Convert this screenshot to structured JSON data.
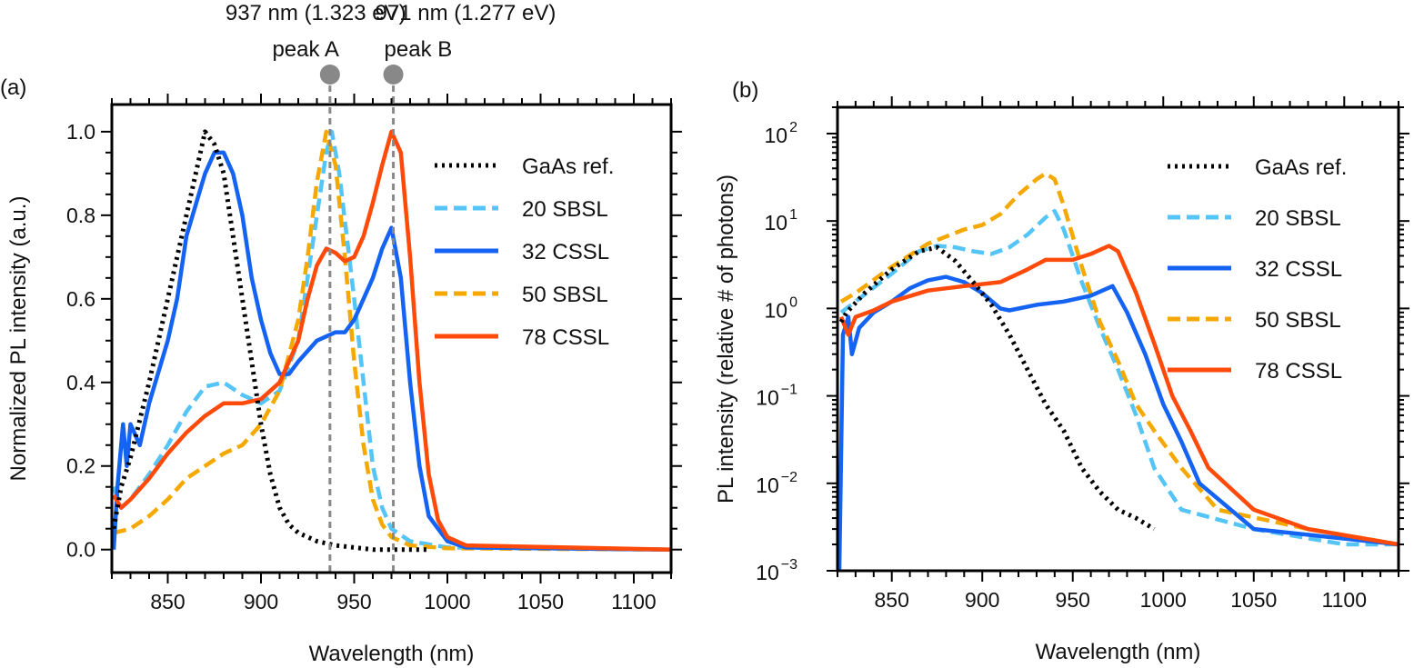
{
  "chart_data": [
    {
      "panel_label": "(a)",
      "type": "line",
      "xlabel": "Wavelength (nm)",
      "ylabel": "Normalized PL intensity (a.u.)",
      "xlim": [
        820,
        1120
      ],
      "ylim": [
        -0.055,
        1.065
      ],
      "yscale": "linear",
      "xticks": [
        850,
        900,
        950,
        1000,
        1050,
        1100
      ],
      "yticks": [
        0.0,
        0.2,
        0.4,
        0.6,
        0.8,
        1.0
      ],
      "ytick_labels": [
        "0.0",
        "0.2",
        "0.4",
        "0.6",
        "0.8",
        "1.0"
      ],
      "grid": false,
      "legend_placement": "top-right",
      "annotations": [
        {
          "x": 937,
          "label": "peak A",
          "value_label": "937 nm (1.323 eV)"
        },
        {
          "x": 971,
          "label": "peak B",
          "value_label": "971 nm (1.277 eV)"
        }
      ],
      "series": [
        {
          "name": "GaAs ref.",
          "color": "#000000",
          "style": "dotted",
          "x": [
            821,
            825,
            830,
            840,
            850,
            860,
            865,
            870,
            875,
            880,
            885,
            890,
            895,
            900,
            905,
            910,
            915,
            920,
            930,
            940,
            950,
            960,
            990
          ],
          "y": [
            0.05,
            0.15,
            0.22,
            0.4,
            0.6,
            0.8,
            0.9,
            1.0,
            0.97,
            0.9,
            0.75,
            0.6,
            0.45,
            0.3,
            0.18,
            0.1,
            0.06,
            0.04,
            0.02,
            0.01,
            0.005,
            0.0,
            0.0
          ]
        },
        {
          "name": "20 SBSL",
          "color": "#55C4F6",
          "style": "dashed",
          "x": [
            821,
            825,
            830,
            840,
            850,
            860,
            870,
            880,
            890,
            900,
            910,
            920,
            930,
            935,
            938,
            942,
            950,
            955,
            960,
            965,
            970,
            980,
            1000,
            1120
          ],
          "y": [
            0.15,
            0.1,
            0.12,
            0.18,
            0.25,
            0.33,
            0.39,
            0.4,
            0.37,
            0.35,
            0.38,
            0.5,
            0.8,
            0.95,
            1.0,
            0.9,
            0.6,
            0.4,
            0.2,
            0.1,
            0.05,
            0.02,
            0.005,
            0.0
          ]
        },
        {
          "name": "32 CSSL",
          "color": "#1463F3",
          "style": "solid",
          "x": [
            821,
            823,
            826,
            828,
            830,
            835,
            840,
            850,
            855,
            860,
            870,
            875,
            880,
            885,
            890,
            895,
            900,
            905,
            910,
            915,
            920,
            930,
            940,
            945,
            950,
            955,
            960,
            965,
            970,
            975,
            980,
            985,
            990,
            1000,
            1010,
            1120
          ],
          "y": [
            0.0,
            0.15,
            0.3,
            0.2,
            0.3,
            0.25,
            0.35,
            0.5,
            0.6,
            0.75,
            0.9,
            0.95,
            0.95,
            0.9,
            0.8,
            0.65,
            0.55,
            0.47,
            0.42,
            0.42,
            0.45,
            0.5,
            0.52,
            0.52,
            0.55,
            0.6,
            0.65,
            0.72,
            0.77,
            0.65,
            0.4,
            0.2,
            0.08,
            0.02,
            0.005,
            0.0
          ]
        },
        {
          "name": "50 SBSL",
          "color": "#F5A900",
          "style": "dashed",
          "x": [
            821,
            830,
            840,
            850,
            860,
            870,
            880,
            890,
            900,
            910,
            920,
            925,
            930,
            935,
            940,
            945,
            950,
            955,
            960,
            965,
            970,
            980,
            1000,
            1120
          ],
          "y": [
            0.04,
            0.05,
            0.08,
            0.12,
            0.17,
            0.2,
            0.23,
            0.25,
            0.3,
            0.38,
            0.55,
            0.7,
            0.88,
            1.0,
            0.92,
            0.7,
            0.45,
            0.25,
            0.12,
            0.06,
            0.03,
            0.01,
            0.003,
            0.0
          ]
        },
        {
          "name": "78 CSSL",
          "color": "#FF4A0A",
          "style": "solid",
          "x": [
            821,
            825,
            830,
            840,
            850,
            860,
            870,
            880,
            890,
            900,
            910,
            920,
            925,
            930,
            935,
            940,
            945,
            950,
            955,
            960,
            965,
            970,
            975,
            980,
            985,
            990,
            995,
            1000,
            1010,
            1120
          ],
          "y": [
            0.13,
            0.1,
            0.12,
            0.17,
            0.23,
            0.28,
            0.32,
            0.35,
            0.35,
            0.36,
            0.4,
            0.5,
            0.6,
            0.68,
            0.72,
            0.71,
            0.69,
            0.7,
            0.75,
            0.83,
            0.92,
            1.0,
            0.95,
            0.7,
            0.4,
            0.18,
            0.07,
            0.03,
            0.01,
            0.0
          ]
        }
      ]
    },
    {
      "panel_label": "(b)",
      "type": "line",
      "xlabel": "Wavelength (nm)",
      "ylabel": "PL intensity (relative # of photons)",
      "xlim": [
        820,
        1130
      ],
      "ylim": [
        0.001,
        200
      ],
      "yscale": "log",
      "xticks": [
        850,
        900,
        950,
        1000,
        1050,
        1100
      ],
      "yticks_exponents": [
        -3,
        -2,
        -1,
        0,
        1,
        2
      ],
      "grid": false,
      "legend_placement": "top-right",
      "series": [
        {
          "name": "GaAs ref.",
          "color": "#000000",
          "style": "dotted",
          "x": [
            822,
            825,
            835,
            850,
            865,
            875,
            885,
            895,
            905,
            915,
            925,
            935,
            945,
            955,
            965,
            975,
            985,
            995
          ],
          "y": [
            0.7,
            0.9,
            1.5,
            2.8,
            4.5,
            5.0,
            3.5,
            2.0,
            1.1,
            0.5,
            0.2,
            0.08,
            0.04,
            0.015,
            0.008,
            0.005,
            0.004,
            0.003
          ]
        },
        {
          "name": "20 SBSL",
          "color": "#55C4F6",
          "style": "dashed",
          "x": [
            822,
            830,
            850,
            865,
            875,
            885,
            895,
            905,
            915,
            925,
            935,
            940,
            945,
            955,
            965,
            975,
            985,
            995,
            1010,
            1050,
            1100,
            1130
          ],
          "y": [
            0.9,
            1.2,
            2.5,
            4.5,
            5.2,
            5.0,
            4.5,
            4.2,
            5.0,
            7.0,
            11,
            13,
            8,
            2,
            0.6,
            0.2,
            0.06,
            0.015,
            0.005,
            0.003,
            0.002,
            0.002
          ]
        },
        {
          "name": "32 CSSL",
          "color": "#1463F3",
          "style": "solid",
          "x": [
            821,
            823,
            826,
            828,
            832,
            840,
            850,
            860,
            870,
            880,
            890,
            900,
            910,
            915,
            930,
            945,
            960,
            972,
            980,
            990,
            1000,
            1010,
            1020,
            1050,
            1130
          ],
          "y": [
            0.001,
            0.5,
            0.8,
            0.3,
            0.6,
            0.9,
            1.2,
            1.7,
            2.1,
            2.3,
            2.0,
            1.5,
            1.0,
            0.95,
            1.1,
            1.2,
            1.4,
            1.8,
            0.9,
            0.3,
            0.08,
            0.03,
            0.01,
            0.003,
            0.002
          ]
        },
        {
          "name": "50 SBSL",
          "color": "#F5A900",
          "style": "dashed",
          "x": [
            822,
            830,
            850,
            870,
            890,
            900,
            910,
            920,
            930,
            935,
            940,
            945,
            955,
            965,
            975,
            985,
            995,
            1010,
            1030,
            1080,
            1130
          ],
          "y": [
            1.2,
            1.5,
            3.0,
            5.5,
            8,
            9,
            12,
            20,
            30,
            35,
            30,
            15,
            3,
            0.7,
            0.25,
            0.08,
            0.04,
            0.015,
            0.005,
            0.003,
            0.002
          ]
        },
        {
          "name": "78 CSSL",
          "color": "#FF4A0A",
          "style": "solid",
          "x": [
            822,
            826,
            830,
            840,
            850,
            870,
            890,
            910,
            925,
            935,
            950,
            960,
            970,
            975,
            985,
            995,
            1005,
            1015,
            1025,
            1050,
            1080,
            1130
          ],
          "y": [
            0.8,
            0.5,
            0.8,
            0.95,
            1.2,
            1.6,
            1.8,
            2.0,
            2.8,
            3.6,
            3.6,
            4.2,
            5.2,
            4.5,
            1.5,
            0.4,
            0.1,
            0.04,
            0.015,
            0.005,
            0.003,
            0.002
          ]
        }
      ]
    }
  ]
}
